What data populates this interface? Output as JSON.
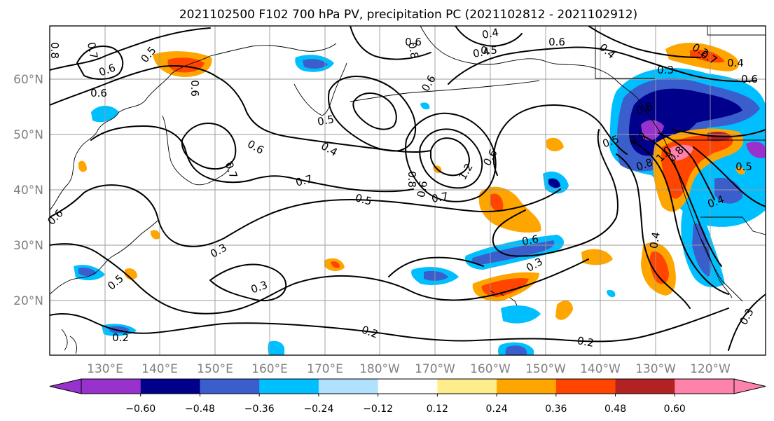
{
  "title": "2021102500 F102 700 hPa PV, precipitation PC (2021102812 - 2021102912)",
  "lat_labels": [
    "60°N",
    "50°N",
    "40°N",
    "30°N",
    "20°N"
  ],
  "lon_labels": [
    "130°E",
    "140°E",
    "150°E",
    "160°E",
    "170°E",
    "180°W",
    "170°W",
    "160°W",
    "150°W",
    "140°W",
    "130°W",
    "120°W"
  ],
  "colorbar": {
    "colors": [
      "#9932cc",
      "#00008b",
      "#3a5fcd",
      "#00bfff",
      "#b0e2ff",
      "#ffffff",
      "#ffec8b",
      "#ffa500",
      "#ff4500",
      "#b22222",
      "#ff82ab"
    ],
    "ticks": [
      "−0.60",
      "−0.48",
      "−0.36",
      "−0.24",
      "−0.12",
      "0.12",
      "0.24",
      "0.36",
      "0.48",
      "0.60"
    ]
  },
  "contour_labels": [
    "0.8",
    "0.7",
    "0.6",
    "0.6",
    "0.5",
    "0.6",
    "0.4",
    "0.4",
    "0.4",
    "0.2",
    "0.5",
    "0.6",
    "0.7",
    "0.8",
    "0.6",
    "0.5",
    "0.4",
    "0.7",
    "0.5",
    "0.8",
    "1.2",
    "0.6",
    "0.7",
    "0.5",
    "0.6",
    "0.3",
    "0.3",
    "0.3",
    "0.2",
    "0.2",
    "0.6",
    "0.4",
    "0.5",
    "0.8",
    "0.9",
    "1.0",
    "0.8",
    "0.7",
    "0.6",
    "0.4",
    "0.3",
    "0.4",
    "0.5",
    "0.2",
    "0.8",
    "0.6",
    "0.3",
    "0.6",
    "0.6"
  ],
  "precip_patches": [
    {
      "color": "#ffa500",
      "rough_value": 0.3
    },
    {
      "color": "#ff4500",
      "rough_value": 0.4
    },
    {
      "color": "#00008b",
      "rough_value": -0.5
    },
    {
      "color": "#9932cc",
      "rough_value": -0.65
    },
    {
      "color": "#ff82ab",
      "rough_value": 0.65
    },
    {
      "color": "#3a5fcd",
      "rough_value": -0.4
    },
    {
      "color": "#00bfff",
      "rough_value": -0.3
    }
  ]
}
